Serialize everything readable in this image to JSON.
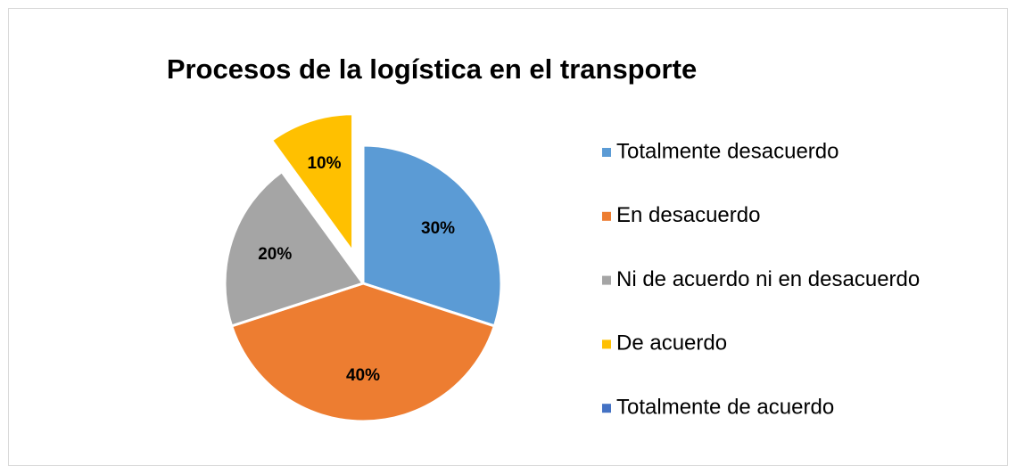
{
  "chart_data": {
    "type": "pie",
    "title": "Procesos de la logística en el transporte",
    "categories": [
      "Totalmente desacuerdo",
      "En desacuerdo",
      "Ni de acuerdo ni en desacuerdo",
      "De acuerdo",
      "Totalmente de acuerdo"
    ],
    "values": [
      30,
      40,
      20,
      10,
      0
    ],
    "value_labels": [
      "30%",
      "40%",
      "20%",
      "10%",
      null
    ],
    "colors": [
      "#5b9bd5",
      "#ed7d31",
      "#a5a5a5",
      "#ffc000",
      "#4472c4"
    ],
    "legend": "right"
  }
}
